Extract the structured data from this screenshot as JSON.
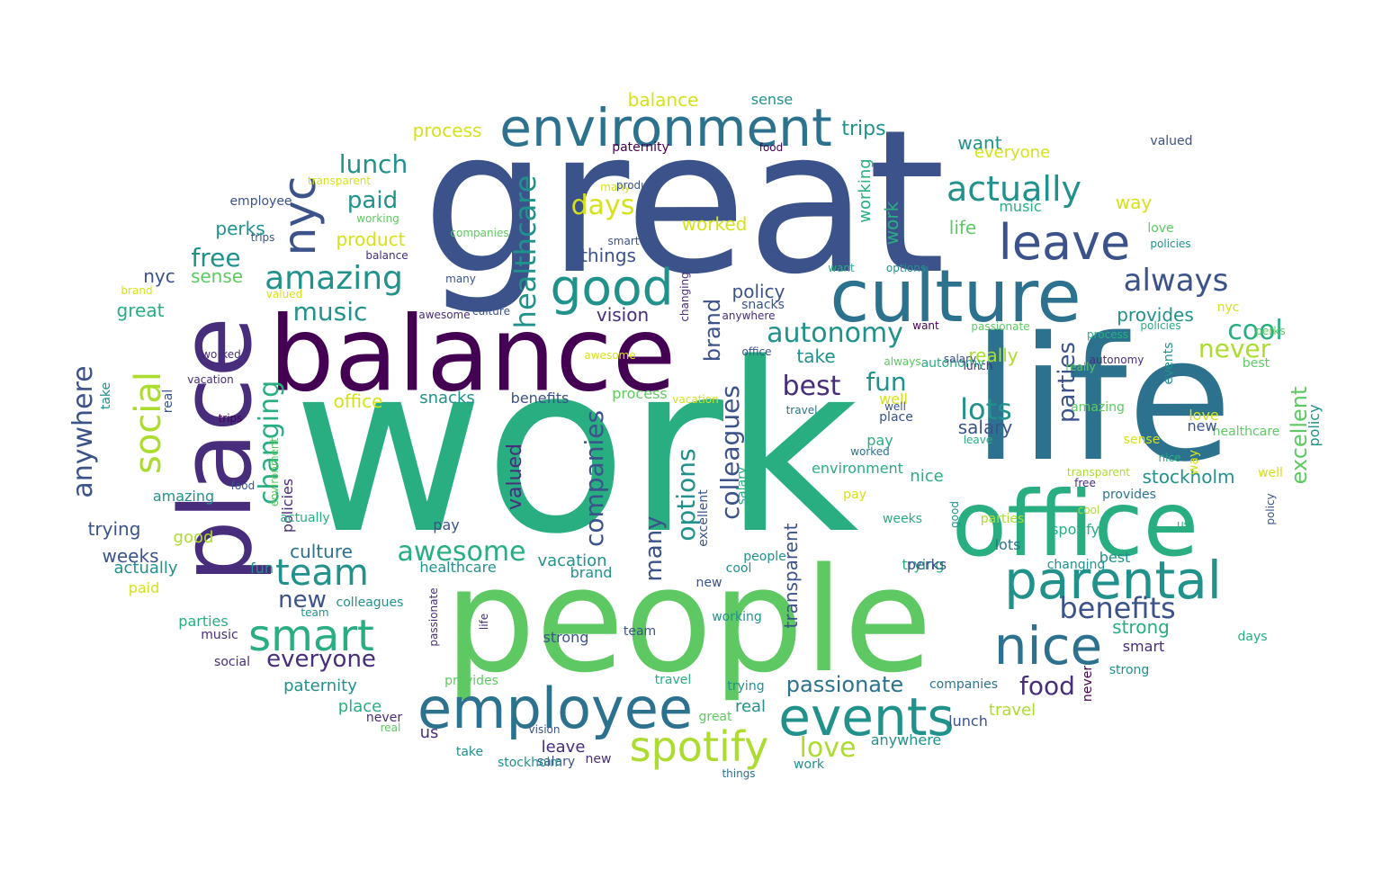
{
  "palette": {
    "p1": "#440154",
    "p2": "#472d7b",
    "p3": "#3b528b",
    "p4": "#2c728e",
    "p5": "#21918c",
    "p6": "#28ae80",
    "p7": "#5ec962",
    "p8": "#addc30",
    "p9": "#d5e21a"
  },
  "words": [
    {
      "text": "work",
      "c": "p6"
    },
    {
      "text": "great",
      "c": "p3"
    },
    {
      "text": "life",
      "c": "p4"
    },
    {
      "text": "people",
      "c": "p7"
    },
    {
      "text": "balance",
      "c": "p1"
    },
    {
      "text": "place",
      "c": "p2"
    },
    {
      "text": "office",
      "c": "p6"
    },
    {
      "text": "culture",
      "c": "p4"
    },
    {
      "text": "environment",
      "c": "p4"
    },
    {
      "text": "employee",
      "c": "p4"
    },
    {
      "text": "events",
      "c": "p5"
    },
    {
      "text": "parental",
      "c": "p5"
    },
    {
      "text": "nice",
      "c": "p4"
    },
    {
      "text": "good",
      "c": "p5"
    },
    {
      "text": "smart",
      "c": "p6"
    },
    {
      "text": "spotify",
      "c": "p8"
    },
    {
      "text": "leave",
      "c": "p3"
    },
    {
      "text": "social",
      "c": "p8"
    },
    {
      "text": "nyc",
      "c": "p3"
    },
    {
      "text": "actually",
      "c": "p5"
    },
    {
      "text": "amazing",
      "c": "p5"
    },
    {
      "text": "team",
      "c": "p5"
    },
    {
      "text": "always",
      "c": "p3"
    },
    {
      "text": "benefits",
      "c": "p3"
    },
    {
      "text": "healthcare",
      "c": "p5"
    },
    {
      "text": "anywhere",
      "c": "p3"
    },
    {
      "text": "companies",
      "c": "p3"
    },
    {
      "text": "awesome",
      "c": "p6"
    },
    {
      "text": "colleagues",
      "c": "p3"
    },
    {
      "text": "options",
      "c": "p5"
    },
    {
      "text": "lots",
      "c": "p5"
    },
    {
      "text": "autonomy",
      "c": "p5"
    },
    {
      "text": "changing",
      "c": "p6"
    },
    {
      "text": "days",
      "c": "p9"
    },
    {
      "text": "fun",
      "c": "p5"
    },
    {
      "text": "best",
      "c": "p2"
    },
    {
      "text": "cool",
      "c": "p6"
    },
    {
      "text": "never",
      "c": "p8"
    },
    {
      "text": "parties",
      "c": "p3"
    },
    {
      "text": "excellent",
      "c": "p7"
    },
    {
      "text": "music",
      "c": "p5"
    },
    {
      "text": "free",
      "c": "p5"
    },
    {
      "text": "paid",
      "c": "p5"
    },
    {
      "text": "lunch",
      "c": "p5"
    },
    {
      "text": "everyone",
      "c": "p2"
    },
    {
      "text": "new",
      "c": "p3"
    },
    {
      "text": "passionate",
      "c": "p4"
    },
    {
      "text": "food",
      "c": "p2"
    },
    {
      "text": "love",
      "c": "p8"
    },
    {
      "text": "many",
      "c": "p3"
    },
    {
      "text": "brand",
      "c": "p3"
    },
    {
      "text": "valued",
      "c": "p2"
    },
    {
      "text": "product",
      "c": "p9"
    },
    {
      "text": "process",
      "c": "p9"
    },
    {
      "text": "balance",
      "c": "p9"
    },
    {
      "text": "sense",
      "c": "p5"
    },
    {
      "text": "trips",
      "c": "p5"
    },
    {
      "text": "transparent",
      "c": "p3"
    },
    {
      "text": "want",
      "c": "p5"
    },
    {
      "text": "worked",
      "c": "p9"
    },
    {
      "text": "things",
      "c": "p3"
    },
    {
      "text": "policy",
      "c": "p3"
    },
    {
      "text": "vision",
      "c": "p2"
    },
    {
      "text": "take",
      "c": "p5"
    },
    {
      "text": "really",
      "c": "p8"
    },
    {
      "text": "salary",
      "c": "p3"
    },
    {
      "text": "stockholm",
      "c": "p5"
    },
    {
      "text": "provides",
      "c": "p5"
    },
    {
      "text": "strong",
      "c": "p6"
    },
    {
      "text": "way",
      "c": "p9"
    },
    {
      "text": "working",
      "c": "p6"
    },
    {
      "text": "work",
      "c": "p6"
    },
    {
      "text": "life",
      "c": "p7"
    },
    {
      "text": "music",
      "c": "p6"
    },
    {
      "text": "everyone",
      "c": "p9"
    },
    {
      "text": "perks",
      "c": "p5"
    },
    {
      "text": "sense",
      "c": "p7"
    },
    {
      "text": "great",
      "c": "p6"
    },
    {
      "text": "nyc",
      "c": "p3"
    },
    {
      "text": "trying",
      "c": "p3"
    },
    {
      "text": "weeks",
      "c": "p3"
    },
    {
      "text": "actually",
      "c": "p5"
    },
    {
      "text": "good",
      "c": "p8"
    },
    {
      "text": "amazing",
      "c": "p5"
    },
    {
      "text": "paid",
      "c": "p9"
    },
    {
      "text": "fun",
      "c": "p5"
    },
    {
      "text": "culture",
      "c": "p4"
    },
    {
      "text": "parties",
      "c": "p6"
    },
    {
      "text": "office",
      "c": "p9"
    },
    {
      "text": "snacks",
      "c": "p5"
    },
    {
      "text": "benefits",
      "c": "p3"
    },
    {
      "text": "process",
      "c": "p7"
    },
    {
      "text": "vacation",
      "c": "p5"
    },
    {
      "text": "healthcare",
      "c": "p5"
    },
    {
      "text": "brand",
      "c": "p5"
    },
    {
      "text": "pay",
      "c": "p3"
    },
    {
      "text": "policies",
      "c": "p2"
    },
    {
      "text": "paternity",
      "c": "p5"
    },
    {
      "text": "place",
      "c": "p6"
    },
    {
      "text": "never",
      "c": "p2"
    },
    {
      "text": "us",
      "c": "p2"
    },
    {
      "text": "salary",
      "c": "p3"
    },
    {
      "text": "leave",
      "c": "p2"
    },
    {
      "text": "new",
      "c": "p2"
    },
    {
      "text": "travel",
      "c": "p8"
    },
    {
      "text": "lunch",
      "c": "p3"
    },
    {
      "text": "anywhere",
      "c": "p5"
    },
    {
      "text": "real",
      "c": "p5"
    },
    {
      "text": "strong",
      "c": "p3"
    },
    {
      "text": "companies",
      "c": "p4"
    },
    {
      "text": "provides",
      "c": "p7"
    },
    {
      "text": "trying",
      "c": "p6"
    },
    {
      "text": "environment",
      "c": "p6"
    },
    {
      "text": "pay",
      "c": "p6"
    },
    {
      "text": "nice",
      "c": "p6"
    },
    {
      "text": "well",
      "c": "p9"
    },
    {
      "text": "spotify",
      "c": "p6"
    },
    {
      "text": "lots",
      "c": "p4"
    },
    {
      "text": "perks",
      "c": "p3"
    },
    {
      "text": "changing",
      "c": "p5"
    },
    {
      "text": "smart",
      "c": "p2"
    },
    {
      "text": "strong",
      "c": "p5"
    },
    {
      "text": "best",
      "c": "p5"
    },
    {
      "text": "love",
      "c": "p7"
    },
    {
      "text": "events",
      "c": "p5"
    },
    {
      "text": "days",
      "c": "p6"
    },
    {
      "text": "policy",
      "c": "p5"
    },
    {
      "text": "valued",
      "c": "p3"
    },
    {
      "text": "paternity",
      "c": "p1"
    },
    {
      "text": "transparent",
      "c": "p9"
    },
    {
      "text": "many",
      "c": "p9"
    },
    {
      "text": "product",
      "c": "p3"
    },
    {
      "text": "employee",
      "c": "p3"
    },
    {
      "text": "working",
      "c": "p7"
    },
    {
      "text": "trips",
      "c": "p3"
    },
    {
      "text": "balance",
      "c": "p2"
    },
    {
      "text": "companies",
      "c": "p7"
    },
    {
      "text": "smart",
      "c": "p3"
    },
    {
      "text": "brand",
      "c": "p9"
    },
    {
      "text": "valued",
      "c": "p9"
    },
    {
      "text": "awesome",
      "c": "p2"
    },
    {
      "text": "culture",
      "c": "p3"
    },
    {
      "text": "changing",
      "c": "p2"
    },
    {
      "text": "many",
      "c": "p3"
    },
    {
      "text": "options",
      "c": "p5"
    },
    {
      "text": "want",
      "c": "p6"
    },
    {
      "text": "anywhere",
      "c": "p2"
    },
    {
      "text": "snacks",
      "c": "p3"
    },
    {
      "text": "office",
      "c": "p3"
    },
    {
      "text": "worked",
      "c": "p2"
    },
    {
      "text": "awesome",
      "c": "p9"
    },
    {
      "text": "vacation",
      "c": "p9"
    },
    {
      "text": "vacation",
      "c": "p2"
    },
    {
      "text": "take",
      "c": "p5"
    },
    {
      "text": "real",
      "c": "p3"
    },
    {
      "text": "trips",
      "c": "p1"
    },
    {
      "text": "food",
      "c": "p3"
    },
    {
      "text": "environment",
      "c": "p7"
    },
    {
      "text": "actually",
      "c": "p6"
    },
    {
      "text": "passionate",
      "c": "p7"
    },
    {
      "text": "want",
      "c": "p1"
    },
    {
      "text": "process",
      "c": "p6"
    },
    {
      "text": "policies",
      "c": "p6"
    },
    {
      "text": "nyc",
      "c": "p9"
    },
    {
      "text": "really",
      "c": "p7"
    },
    {
      "text": "lunch",
      "c": "p2"
    },
    {
      "text": "best",
      "c": "p7"
    },
    {
      "text": "healthcare",
      "c": "p7"
    },
    {
      "text": "always",
      "c": "p7"
    },
    {
      "text": "autonomy",
      "c": "p6"
    },
    {
      "text": "autonomy",
      "c": "p2"
    },
    {
      "text": "travel",
      "c": "p4"
    },
    {
      "text": "place",
      "c": "p3"
    },
    {
      "text": "amazing",
      "c": "p7"
    },
    {
      "text": "leave",
      "c": "p6"
    },
    {
      "text": "pay",
      "c": "p9"
    },
    {
      "text": "weeks",
      "c": "p6"
    },
    {
      "text": "parties",
      "c": "p8"
    },
    {
      "text": "cool",
      "c": "p8"
    },
    {
      "text": "provides",
      "c": "p4"
    },
    {
      "text": "free",
      "c": "p2"
    },
    {
      "text": "us",
      "c": "p6"
    },
    {
      "text": "nice",
      "c": "p6"
    },
    {
      "text": "policy",
      "c": "p3"
    },
    {
      "text": "well",
      "c": "p9"
    },
    {
      "text": "way",
      "c": "p9"
    },
    {
      "text": "salary",
      "c": "p6"
    },
    {
      "text": "excellent",
      "c": "p3"
    },
    {
      "text": "good",
      "c": "p5"
    },
    {
      "text": "transparent",
      "c": "p8"
    },
    {
      "text": "worked",
      "c": "p4"
    },
    {
      "text": "well",
      "c": "p3"
    },
    {
      "text": "cool",
      "c": "p5"
    },
    {
      "text": "people",
      "c": "p5"
    },
    {
      "text": "new",
      "c": "p3"
    },
    {
      "text": "colleagues",
      "c": "p5"
    },
    {
      "text": "team",
      "c": "p5"
    },
    {
      "text": "music",
      "c": "p2"
    },
    {
      "text": "social",
      "c": "p2"
    },
    {
      "text": "passionate",
      "c": "p2"
    },
    {
      "text": "life",
      "c": "p2"
    },
    {
      "text": "team",
      "c": "p3"
    },
    {
      "text": "travel",
      "c": "p6"
    },
    {
      "text": "working",
      "c": "p5"
    },
    {
      "text": "great",
      "c": "p7"
    },
    {
      "text": "trying",
      "c": "p5"
    },
    {
      "text": "never",
      "c": "p1"
    },
    {
      "text": "vision",
      "c": "p3"
    },
    {
      "text": "real",
      "c": "p7"
    },
    {
      "text": "take",
      "c": "p5"
    },
    {
      "text": "stockholm",
      "c": "p5"
    },
    {
      "text": "things",
      "c": "p4"
    },
    {
      "text": "work",
      "c": "p5"
    },
    {
      "text": "salary",
      "c": "p3"
    },
    {
      "text": "sense",
      "c": "p9"
    },
    {
      "text": "new",
      "c": "p3"
    },
    {
      "text": "love",
      "c": "p9"
    },
    {
      "text": "food",
      "c": "p1"
    },
    {
      "text": "perks",
      "c": "p7"
    },
    {
      "text": "policies",
      "c": "p5"
    },
    {
      "text": "days",
      "c": "p5"
    },
    {
      "text": "events",
      "c": "p3"
    },
    {
      "text": "fun",
      "c": "p9"
    },
    {
      "text": "strong",
      "c": "p5"
    },
    {
      "text": "vision",
      "c": "p5"
    },
    {
      "text": "paternity",
      "c": "p2"
    },
    {
      "text": "lunch",
      "c": "p2"
    },
    {
      "text": "weeks",
      "c": "p5"
    }
  ]
}
